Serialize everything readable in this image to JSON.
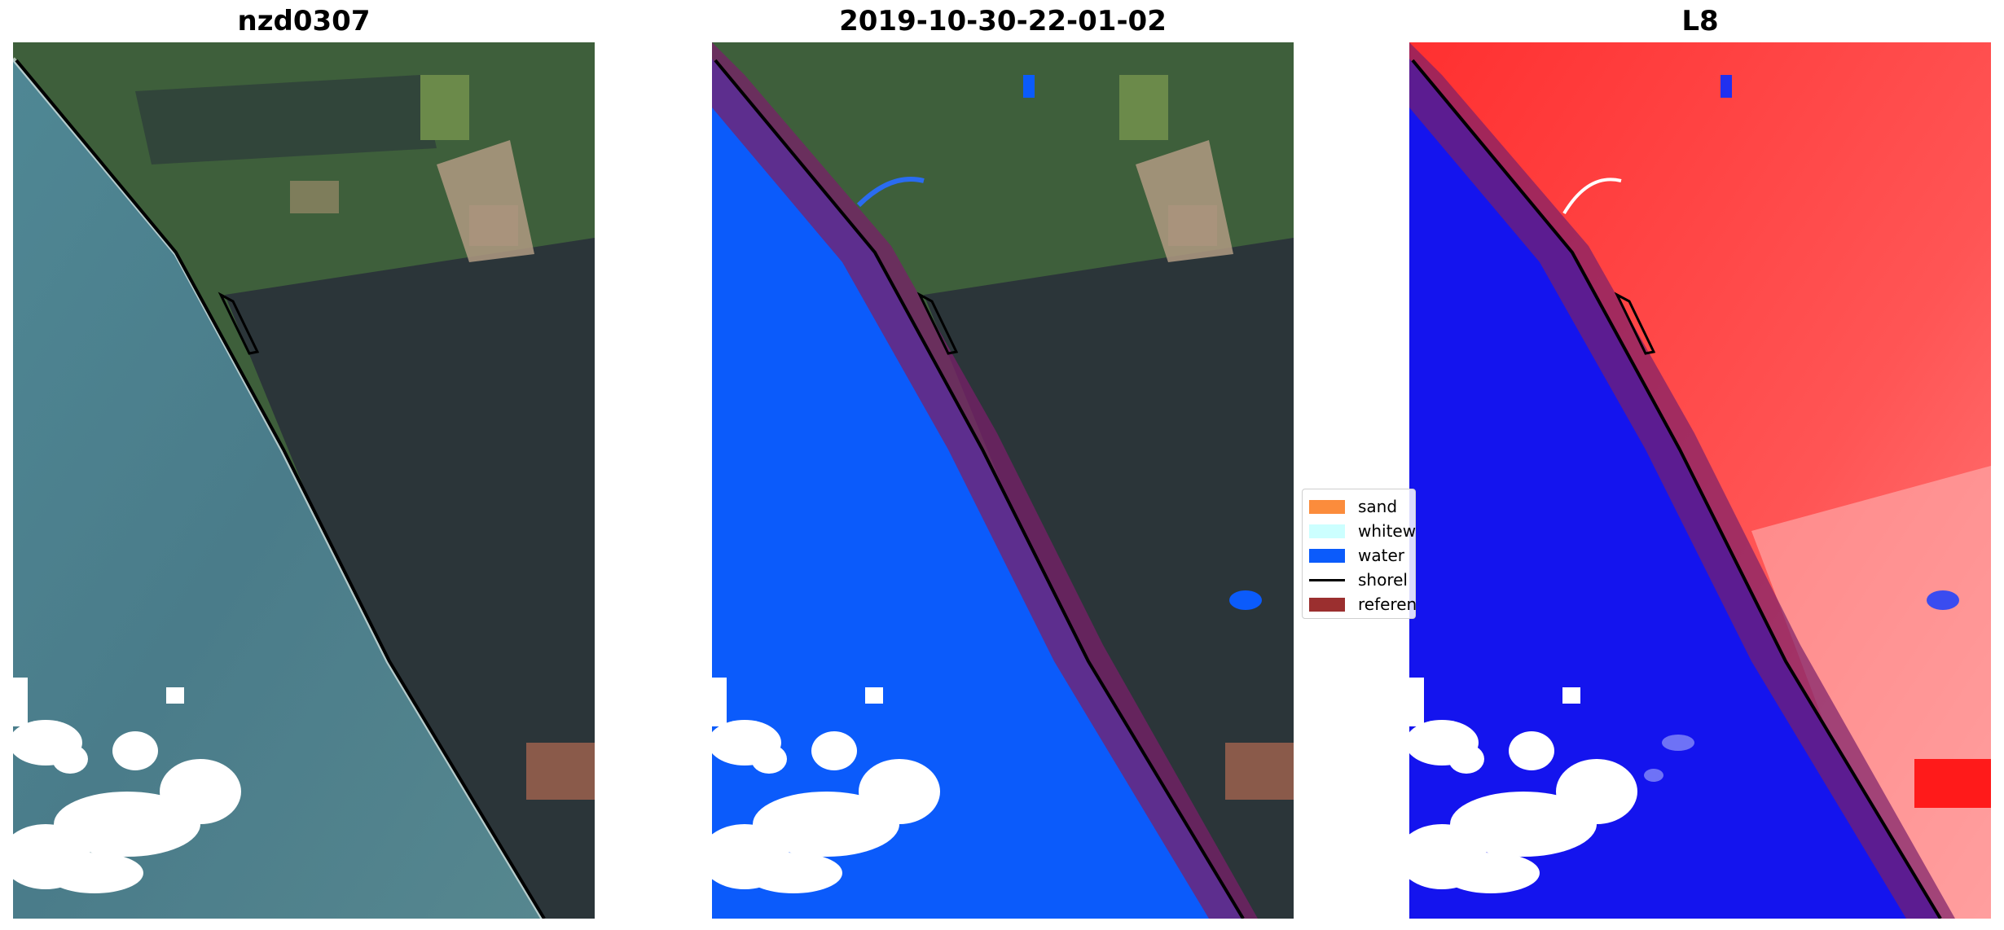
{
  "panels": [
    {
      "title": "nzd0307"
    },
    {
      "title": "2019-10-30-22-01-02"
    },
    {
      "title": "L8"
    }
  ],
  "legend": {
    "items": [
      {
        "label": "sand",
        "color": "#fb8c3c",
        "icon": "patch"
      },
      {
        "label": "whitew",
        "color": "#ccffff",
        "icon": "patch"
      },
      {
        "label": "water",
        "color": "#0b5bfb",
        "icon": "patch"
      },
      {
        "label": "shorel",
        "color": "#000000",
        "icon": "line"
      },
      {
        "label": "referen",
        "color": "#9b2f2f",
        "icon": "patch"
      }
    ]
  },
  "colors": {
    "ocean": "#4d7f8c",
    "land_green": "#3d5e3a",
    "forest_dark": "#2a3438",
    "water_class": "#0b5bfb",
    "reference_band": "#7a1f6a",
    "index_water": "#1010f0",
    "index_land": "#ff3b3b",
    "cloud": "#ffffff"
  }
}
